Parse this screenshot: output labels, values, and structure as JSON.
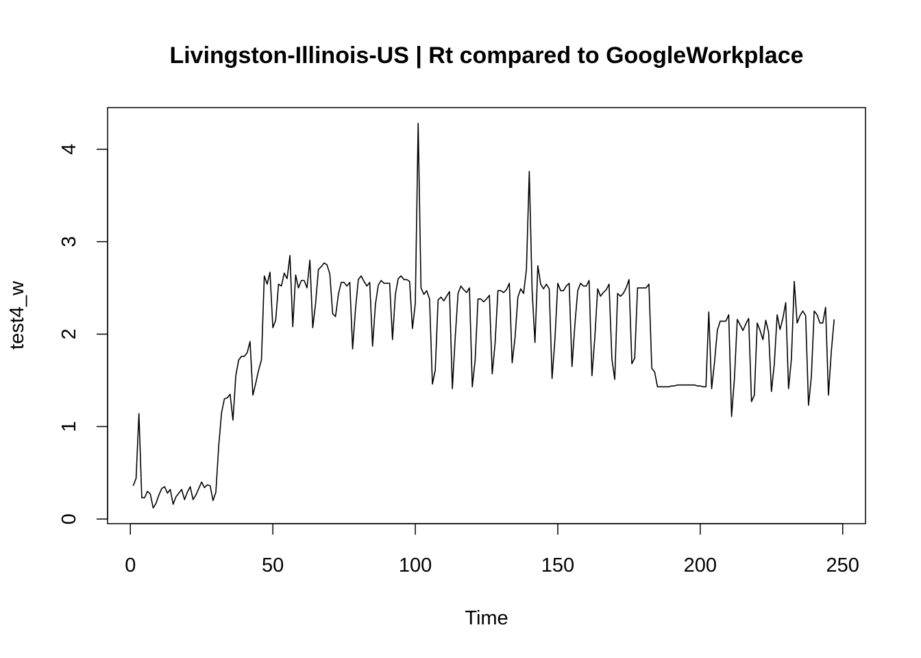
{
  "chart_data": {
    "type": "line",
    "title": "Livingston-Illinois-US | Rt compared to GoogleWorkplace",
    "xlabel": "Time",
    "ylabel": "test4_w",
    "xlim": [
      -8,
      258
    ],
    "ylim": [
      -0.05,
      4.45
    ],
    "x_ticks": [
      0,
      50,
      100,
      150,
      200,
      250
    ],
    "y_ticks": [
      0,
      1,
      2,
      3,
      4
    ],
    "grid": false,
    "legend": "none",
    "line_color": "#000000",
    "series": [
      {
        "x_start": 1,
        "values": [
          0.36,
          0.44,
          1.14,
          0.23,
          0.23,
          0.3,
          0.27,
          0.12,
          0.17,
          0.26,
          0.33,
          0.35,
          0.28,
          0.32,
          0.16,
          0.24,
          0.28,
          0.32,
          0.21,
          0.29,
          0.35,
          0.21,
          0.26,
          0.33,
          0.4,
          0.34,
          0.37,
          0.36,
          0.2,
          0.29,
          0.79,
          1.15,
          1.3,
          1.31,
          1.35,
          1.07,
          1.55,
          1.72,
          1.76,
          1.76,
          1.8,
          1.92,
          1.34,
          1.47,
          1.61,
          1.72,
          2.63,
          2.54,
          2.67,
          2.07,
          2.15,
          2.54,
          2.52,
          2.66,
          2.6,
          2.85,
          2.08,
          2.64,
          2.5,
          2.58,
          2.58,
          2.5,
          2.8,
          2.07,
          2.33,
          2.7,
          2.73,
          2.77,
          2.75,
          2.65,
          2.22,
          2.19,
          2.43,
          2.56,
          2.56,
          2.52,
          2.56,
          1.84,
          2.27,
          2.59,
          2.63,
          2.57,
          2.52,
          2.56,
          1.87,
          2.32,
          2.53,
          2.58,
          2.55,
          2.55,
          2.55,
          1.94,
          2.43,
          2.6,
          2.63,
          2.59,
          2.59,
          2.57,
          2.06,
          2.33,
          4.28,
          2.5,
          2.43,
          2.47,
          2.38,
          1.46,
          1.61,
          2.37,
          2.4,
          2.36,
          2.41,
          2.46,
          1.41,
          1.96,
          2.44,
          2.52,
          2.48,
          2.45,
          2.5,
          1.43,
          1.72,
          2.38,
          2.38,
          2.35,
          2.38,
          2.42,
          1.57,
          1.9,
          2.47,
          2.47,
          2.45,
          2.48,
          2.55,
          1.69,
          1.96,
          2.4,
          2.49,
          2.44,
          2.7,
          3.76,
          2.47,
          1.91,
          2.74,
          2.54,
          2.49,
          2.54,
          2.49,
          1.52,
          1.94,
          2.55,
          2.47,
          2.47,
          2.52,
          2.55,
          1.65,
          2.1,
          2.47,
          2.55,
          2.52,
          2.52,
          2.58,
          1.55,
          1.96,
          2.49,
          2.41,
          2.45,
          2.48,
          2.54,
          1.73,
          1.51,
          2.44,
          2.41,
          2.44,
          2.5,
          2.59,
          1.68,
          1.74,
          2.5,
          2.5,
          2.5,
          2.5,
          2.54,
          1.63,
          1.59,
          1.43,
          1.43,
          1.43,
          1.43,
          1.43,
          1.44,
          1.44,
          1.45,
          1.45,
          1.45,
          1.45,
          1.45,
          1.45,
          1.45,
          1.44,
          1.44,
          1.43,
          1.43,
          2.24,
          1.41,
          1.69,
          2.04,
          2.14,
          2.14,
          2.14,
          2.21,
          1.11,
          1.52,
          2.16,
          2.1,
          2.04,
          2.11,
          2.17,
          1.27,
          1.34,
          2.12,
          2.04,
          1.94,
          2.15,
          2.02,
          1.38,
          1.68,
          2.21,
          2.05,
          2.17,
          2.34,
          1.41,
          1.73,
          2.57,
          2.12,
          2.2,
          2.25,
          2.2,
          1.23,
          1.54,
          2.25,
          2.21,
          2.12,
          2.12,
          2.29,
          1.34,
          1.81,
          2.16
        ]
      }
    ]
  }
}
